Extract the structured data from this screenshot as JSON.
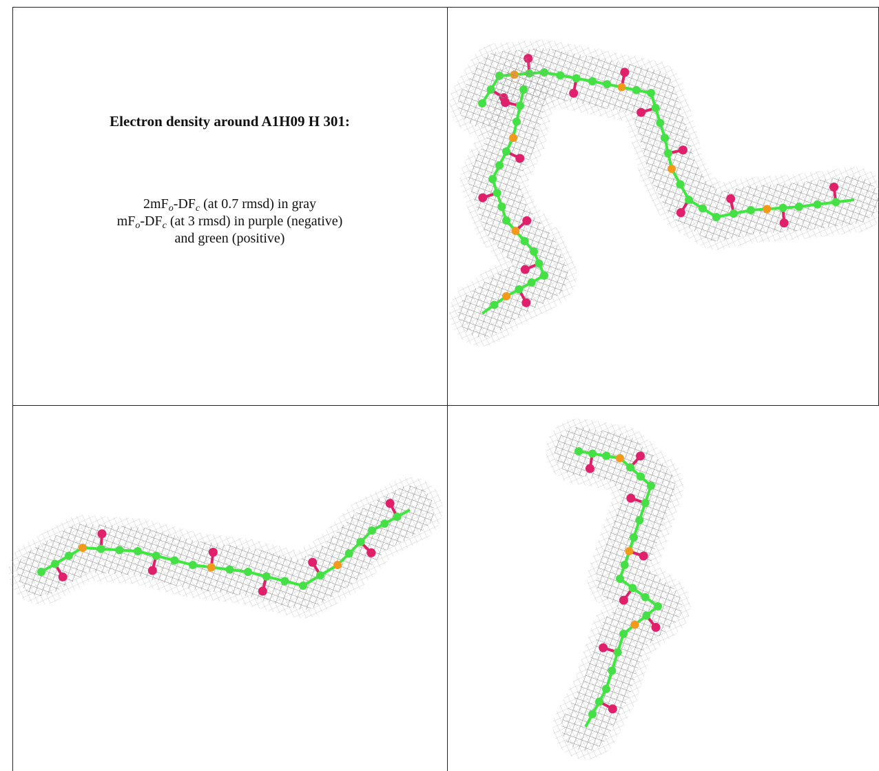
{
  "caption": {
    "title": "Electron density around A1H09 H 301:",
    "lines": [
      [
        "2mF",
        "o",
        "-DF",
        "c",
        " (at 0.7 rmsd) in gray"
      ],
      [
        "mF",
        "o",
        "-DF",
        "c",
        " (at 3 rmsd) in purple (negative)"
      ],
      [
        "and green (positive)"
      ]
    ]
  }
}
